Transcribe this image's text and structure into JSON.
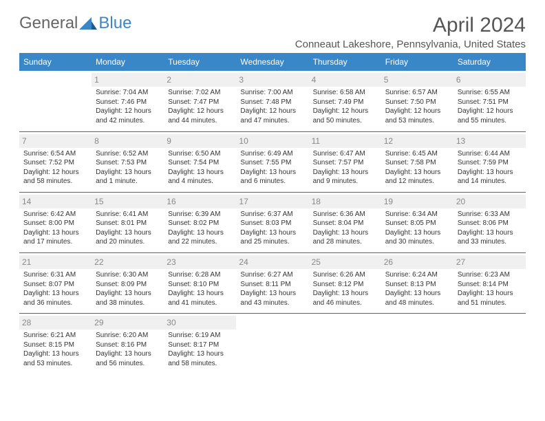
{
  "logo": {
    "text1": "General",
    "text2": "Blue",
    "color1": "#666666",
    "color2": "#3a87c8"
  },
  "title": "April 2024",
  "location": "Conneaut Lakeshore, Pennsylvania, United States",
  "header_bg": "#3a87c8",
  "header_fg": "#ffffff",
  "divider_color": "#3a6a95",
  "daynum_bg": "#f0f0f0",
  "daynum_fg": "#888888",
  "weekdays": [
    "Sunday",
    "Monday",
    "Tuesday",
    "Wednesday",
    "Thursday",
    "Friday",
    "Saturday"
  ],
  "weeks": [
    [
      null,
      {
        "num": "1",
        "sunrise": "7:04 AM",
        "sunset": "7:46 PM",
        "daylight": "12 hours and 42 minutes."
      },
      {
        "num": "2",
        "sunrise": "7:02 AM",
        "sunset": "7:47 PM",
        "daylight": "12 hours and 44 minutes."
      },
      {
        "num": "3",
        "sunrise": "7:00 AM",
        "sunset": "7:48 PM",
        "daylight": "12 hours and 47 minutes."
      },
      {
        "num": "4",
        "sunrise": "6:58 AM",
        "sunset": "7:49 PM",
        "daylight": "12 hours and 50 minutes."
      },
      {
        "num": "5",
        "sunrise": "6:57 AM",
        "sunset": "7:50 PM",
        "daylight": "12 hours and 53 minutes."
      },
      {
        "num": "6",
        "sunrise": "6:55 AM",
        "sunset": "7:51 PM",
        "daylight": "12 hours and 55 minutes."
      }
    ],
    [
      {
        "num": "7",
        "sunrise": "6:54 AM",
        "sunset": "7:52 PM",
        "daylight": "12 hours and 58 minutes."
      },
      {
        "num": "8",
        "sunrise": "6:52 AM",
        "sunset": "7:53 PM",
        "daylight": "13 hours and 1 minute."
      },
      {
        "num": "9",
        "sunrise": "6:50 AM",
        "sunset": "7:54 PM",
        "daylight": "13 hours and 4 minutes."
      },
      {
        "num": "10",
        "sunrise": "6:49 AM",
        "sunset": "7:55 PM",
        "daylight": "13 hours and 6 minutes."
      },
      {
        "num": "11",
        "sunrise": "6:47 AM",
        "sunset": "7:57 PM",
        "daylight": "13 hours and 9 minutes."
      },
      {
        "num": "12",
        "sunrise": "6:45 AM",
        "sunset": "7:58 PM",
        "daylight": "13 hours and 12 minutes."
      },
      {
        "num": "13",
        "sunrise": "6:44 AM",
        "sunset": "7:59 PM",
        "daylight": "13 hours and 14 minutes."
      }
    ],
    [
      {
        "num": "14",
        "sunrise": "6:42 AM",
        "sunset": "8:00 PM",
        "daylight": "13 hours and 17 minutes."
      },
      {
        "num": "15",
        "sunrise": "6:41 AM",
        "sunset": "8:01 PM",
        "daylight": "13 hours and 20 minutes."
      },
      {
        "num": "16",
        "sunrise": "6:39 AM",
        "sunset": "8:02 PM",
        "daylight": "13 hours and 22 minutes."
      },
      {
        "num": "17",
        "sunrise": "6:37 AM",
        "sunset": "8:03 PM",
        "daylight": "13 hours and 25 minutes."
      },
      {
        "num": "18",
        "sunrise": "6:36 AM",
        "sunset": "8:04 PM",
        "daylight": "13 hours and 28 minutes."
      },
      {
        "num": "19",
        "sunrise": "6:34 AM",
        "sunset": "8:05 PM",
        "daylight": "13 hours and 30 minutes."
      },
      {
        "num": "20",
        "sunrise": "6:33 AM",
        "sunset": "8:06 PM",
        "daylight": "13 hours and 33 minutes."
      }
    ],
    [
      {
        "num": "21",
        "sunrise": "6:31 AM",
        "sunset": "8:07 PM",
        "daylight": "13 hours and 36 minutes."
      },
      {
        "num": "22",
        "sunrise": "6:30 AM",
        "sunset": "8:09 PM",
        "daylight": "13 hours and 38 minutes."
      },
      {
        "num": "23",
        "sunrise": "6:28 AM",
        "sunset": "8:10 PM",
        "daylight": "13 hours and 41 minutes."
      },
      {
        "num": "24",
        "sunrise": "6:27 AM",
        "sunset": "8:11 PM",
        "daylight": "13 hours and 43 minutes."
      },
      {
        "num": "25",
        "sunrise": "6:26 AM",
        "sunset": "8:12 PM",
        "daylight": "13 hours and 46 minutes."
      },
      {
        "num": "26",
        "sunrise": "6:24 AM",
        "sunset": "8:13 PM",
        "daylight": "13 hours and 48 minutes."
      },
      {
        "num": "27",
        "sunrise": "6:23 AM",
        "sunset": "8:14 PM",
        "daylight": "13 hours and 51 minutes."
      }
    ],
    [
      {
        "num": "28",
        "sunrise": "6:21 AM",
        "sunset": "8:15 PM",
        "daylight": "13 hours and 53 minutes."
      },
      {
        "num": "29",
        "sunrise": "6:20 AM",
        "sunset": "8:16 PM",
        "daylight": "13 hours and 56 minutes."
      },
      {
        "num": "30",
        "sunrise": "6:19 AM",
        "sunset": "8:17 PM",
        "daylight": "13 hours and 58 minutes."
      },
      null,
      null,
      null,
      null
    ]
  ],
  "labels": {
    "sunrise": "Sunrise: ",
    "sunset": "Sunset: ",
    "daylight": "Daylight: "
  }
}
